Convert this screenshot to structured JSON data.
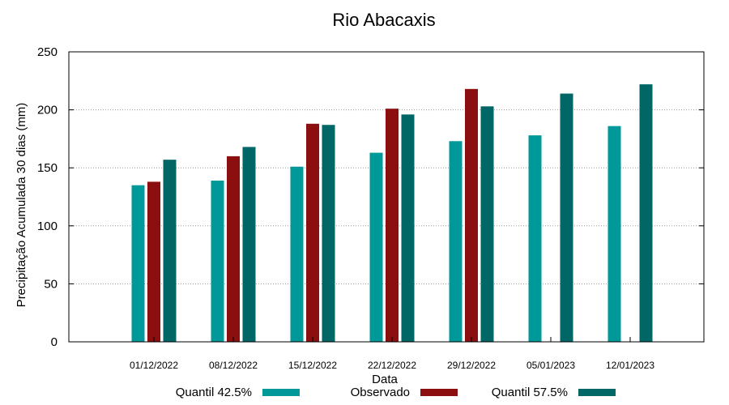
{
  "chart_data": {
    "type": "bar",
    "title": "Rio Abacaxis",
    "xlabel": "Data",
    "ylabel": "Precipitação Acumulada 30 dias (mm)",
    "ylim": [
      0,
      250
    ],
    "yticks": [
      "0",
      "50",
      "100",
      "150",
      "200",
      "250"
    ],
    "grid": "horizontal dotted",
    "legend_position": "bottom",
    "categories": [
      "01/12/2022",
      "08/12/2022",
      "15/12/2022",
      "22/12/2022",
      "29/12/2022",
      "05/01/2023",
      "12/01/2023"
    ],
    "series": [
      {
        "name": "Quantil 42.5%",
        "color": "#009999",
        "values": [
          135,
          139,
          151,
          163,
          173,
          178,
          186
        ]
      },
      {
        "name": "Observado",
        "color": "#8b0f0f",
        "values": [
          138,
          160,
          188,
          201,
          218,
          null,
          null
        ]
      },
      {
        "name": "Quantil 57.5%",
        "color": "#006666",
        "values": [
          157,
          168,
          187,
          196,
          203,
          214,
          222
        ]
      }
    ]
  }
}
